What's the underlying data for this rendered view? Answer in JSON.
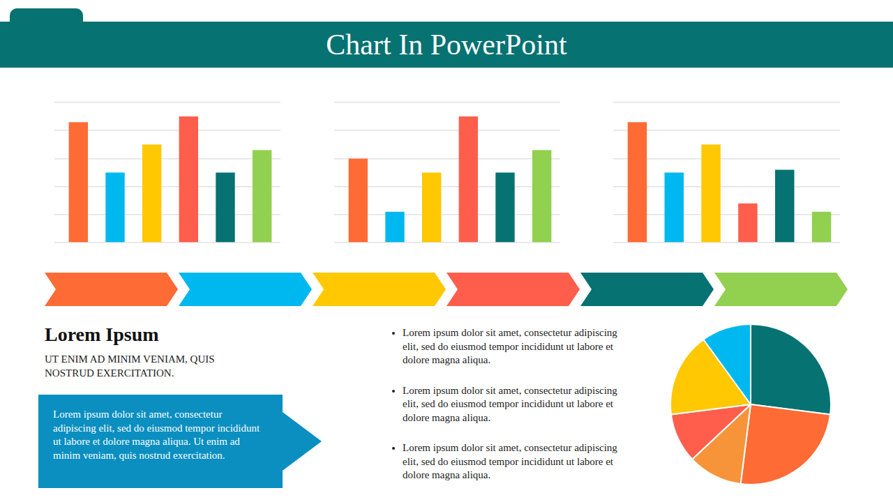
{
  "header": {
    "title": "Chart In PowerPoint"
  },
  "chart_data": [
    {
      "type": "bar",
      "categories": [
        null,
        null,
        null,
        null,
        null,
        null
      ],
      "values": [
        4.3,
        2.5,
        3.5,
        4.5,
        2.5,
        3.3
      ],
      "colors": [
        "#ff6b35",
        "#00b8f0",
        "#ffc800",
        "#ff5e4d",
        "#067272",
        "#92d050"
      ],
      "ylim": [
        0,
        5
      ],
      "yticks": [
        0,
        1,
        2,
        3,
        4,
        5
      ],
      "grid": true,
      "tick_labels": false
    },
    {
      "type": "bar",
      "categories": [
        null,
        null,
        null,
        null,
        null,
        null
      ],
      "values": [
        3.0,
        1.1,
        2.5,
        4.5,
        2.5,
        3.3
      ],
      "colors": [
        "#ff6b35",
        "#00b8f0",
        "#ffc800",
        "#ff5e4d",
        "#067272",
        "#92d050"
      ],
      "ylim": [
        0,
        5
      ],
      "yticks": [
        0,
        1,
        2,
        3,
        4,
        5
      ],
      "grid": true,
      "tick_labels": false
    },
    {
      "type": "bar",
      "categories": [
        null,
        null,
        null,
        null,
        null,
        null
      ],
      "values": [
        4.3,
        2.5,
        3.5,
        1.4,
        2.6,
        1.1
      ],
      "colors": [
        "#ff6b35",
        "#00b8f0",
        "#ffc800",
        "#ff5e4d",
        "#067272",
        "#92d050"
      ],
      "ylim": [
        0,
        5
      ],
      "yticks": [
        0,
        1,
        2,
        3,
        4,
        5
      ],
      "grid": true,
      "tick_labels": false
    },
    {
      "type": "pie",
      "categories": [
        null,
        null,
        null,
        null,
        null,
        null
      ],
      "values": [
        27,
        25,
        11,
        10,
        17,
        10
      ],
      "colors": [
        "#067272",
        "#ff6b35",
        "#f7943a",
        "#ff5e4d",
        "#ffc800",
        "#00b8f0"
      ]
    }
  ],
  "section": {
    "title": "Lorem Ipsum",
    "subtitle": "UT ENIM AD MINIM VENIAM, QUIS NOSTRUD EXERCITATION.",
    "callout": "Lorem ipsum dolor sit amet, consectetur adipiscing elit, sed do eiusmod tempor incididunt ut labore et dolore magna aliqua. Ut enim ad minim veniam, quis nostrud exercitation."
  },
  "bullets": [
    "Lorem ipsum dolor sit amet, consectetur adipiscing elit, sed do eiusmod tempor incididunt ut labore et dolore magna aliqua.",
    "Lorem ipsum dolor sit amet, consectetur adipiscing elit, sed do eiusmod tempor incididunt ut labore et dolore magna aliqua.",
    "Lorem ipsum dolor sit amet, consectetur adipiscing elit, sed do eiusmod tempor incididunt ut labore et dolore magna aliqua."
  ]
}
